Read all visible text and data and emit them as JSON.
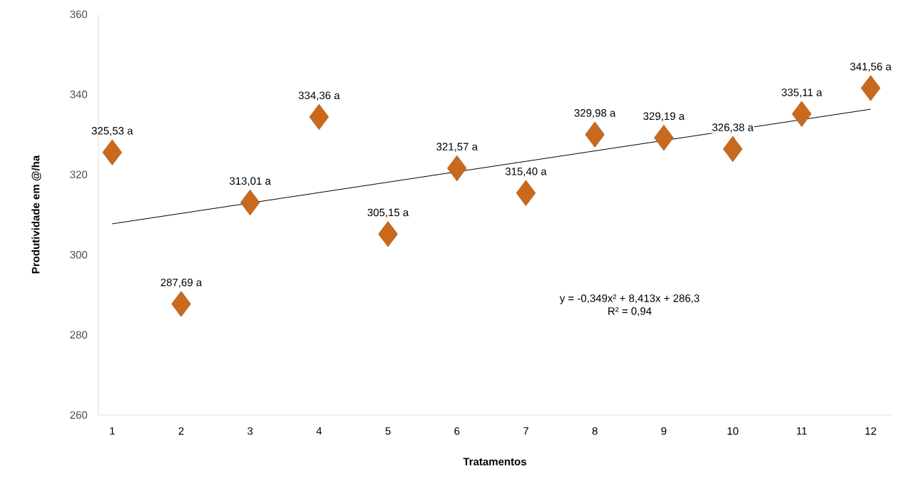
{
  "chart_data": {
    "type": "scatter",
    "xlabel": "Tratamentos",
    "ylabel": "Produtividade em @/ha",
    "x": [
      1,
      2,
      3,
      4,
      5,
      6,
      7,
      8,
      9,
      10,
      11,
      12
    ],
    "xlim": [
      0.8,
      12.3
    ],
    "xticks": [
      1,
      2,
      3,
      4,
      5,
      6,
      7,
      8,
      9,
      10,
      11,
      12
    ],
    "ylim": [
      260,
      360
    ],
    "yticks": [
      260,
      280,
      300,
      320,
      340,
      360
    ],
    "marker": "diamond",
    "series": [
      {
        "color": "#c8691e",
        "values": [
          325.53,
          287.69,
          313.01,
          334.36,
          305.15,
          321.57,
          315.4,
          329.98,
          329.19,
          326.38,
          335.11,
          341.56
        ],
        "value_labels": [
          "325,53 a",
          "287,69 a",
          "313,01 a",
          "334,36 a",
          "305,15 a",
          "321,57 a",
          "315,40 a",
          "329,98 a",
          "329,19 a",
          "326,38 a",
          "335,11 a",
          "341,56 a"
        ]
      },
      {
        "type": "line",
        "marker": "none",
        "color": "#000000",
        "x": [
          1,
          12
        ],
        "values": [
          307.7,
          336.3
        ]
      }
    ],
    "annotations": [
      "y = -0,349x² + 8,413x + 286,3",
      "R² = 0,94"
    ]
  }
}
